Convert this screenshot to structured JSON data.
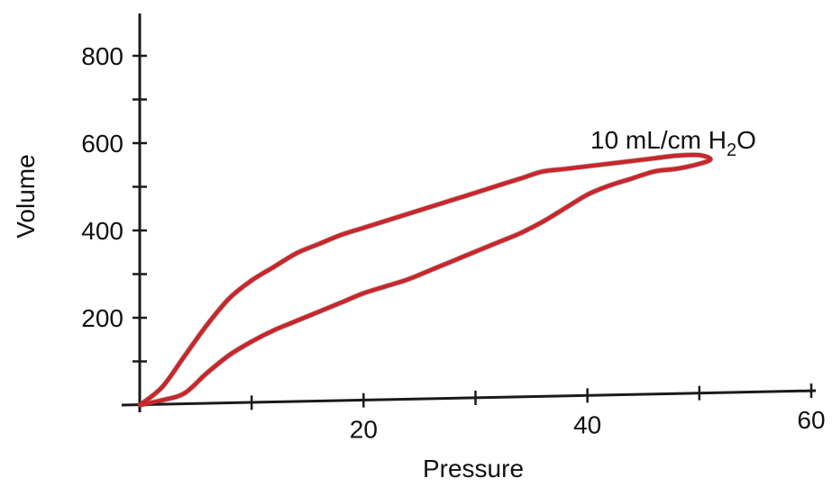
{
  "chart_data": {
    "type": "line",
    "title": "",
    "xlabel": "Pressure",
    "ylabel": "Volume",
    "xlim": [
      0,
      60
    ],
    "ylim": [
      0,
      850
    ],
    "x_ticks": [
      20,
      40,
      60
    ],
    "y_ticks": [
      200,
      400,
      600,
      800
    ],
    "x_tick_labels": [
      "20",
      "40",
      "60"
    ],
    "y_tick_labels": [
      "200",
      "400",
      "600",
      "800"
    ],
    "grid": false,
    "annotation": {
      "main": "10 mL/cm H",
      "sub": "2",
      "tail": "O"
    },
    "line_color": "#c8262b",
    "series": [
      {
        "name": "",
        "x": [
          0,
          2,
          4,
          6,
          8,
          10,
          12,
          14,
          16,
          18,
          20,
          22,
          24,
          26,
          28,
          30,
          32,
          34,
          36,
          38,
          40,
          42,
          44,
          46,
          48,
          50,
          51,
          50,
          48,
          46,
          44,
          42,
          40,
          38,
          36,
          34,
          32,
          30,
          28,
          26,
          24,
          22,
          20,
          18,
          16,
          14,
          12,
          10,
          8,
          6,
          4,
          2,
          0
        ],
        "y": [
          0,
          40,
          110,
          180,
          240,
          280,
          310,
          340,
          360,
          380,
          395,
          410,
          425,
          440,
          455,
          470,
          485,
          500,
          515,
          520,
          525,
          530,
          535,
          540,
          545,
          545,
          535,
          525,
          515,
          510,
          495,
          480,
          460,
          430,
          400,
          375,
          355,
          335,
          315,
          295,
          275,
          260,
          245,
          225,
          205,
          185,
          165,
          140,
          110,
          70,
          25,
          10,
          0
        ]
      }
    ]
  }
}
